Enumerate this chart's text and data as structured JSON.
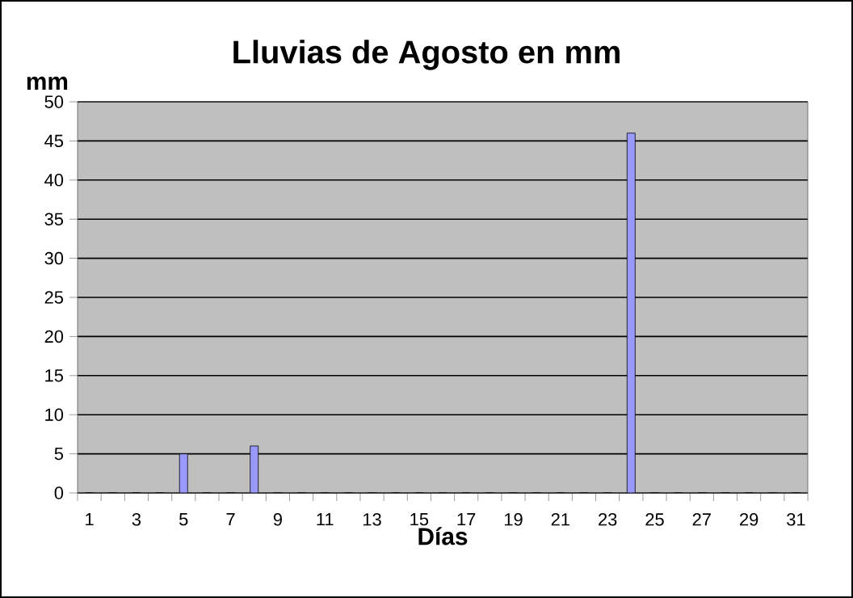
{
  "chart_data": {
    "type": "bar",
    "title": "Lluvias de Agosto en mm",
    "xlabel": "Días",
    "ylabel": "mm",
    "categories": [
      "1",
      null,
      "3",
      null,
      "5",
      null,
      "7",
      null,
      "9",
      null,
      "11",
      null,
      "13",
      null,
      "15",
      null,
      "17",
      null,
      "19",
      null,
      "21",
      null,
      "23",
      null,
      "25",
      null,
      "27",
      null,
      "29",
      null,
      "31"
    ],
    "values": [
      0,
      0,
      0,
      0,
      5,
      0,
      0,
      6,
      0,
      0,
      0,
      0,
      0,
      0,
      0,
      0,
      0,
      0,
      0,
      0,
      0,
      0,
      0,
      46,
      0,
      0,
      0,
      0,
      0,
      0,
      0
    ],
    "color": "#9999ff",
    "ylim": [
      0,
      50
    ],
    "yticks": [
      0,
      5,
      10,
      15,
      20,
      25,
      30,
      35,
      40,
      45,
      50
    ],
    "grid": "y"
  }
}
